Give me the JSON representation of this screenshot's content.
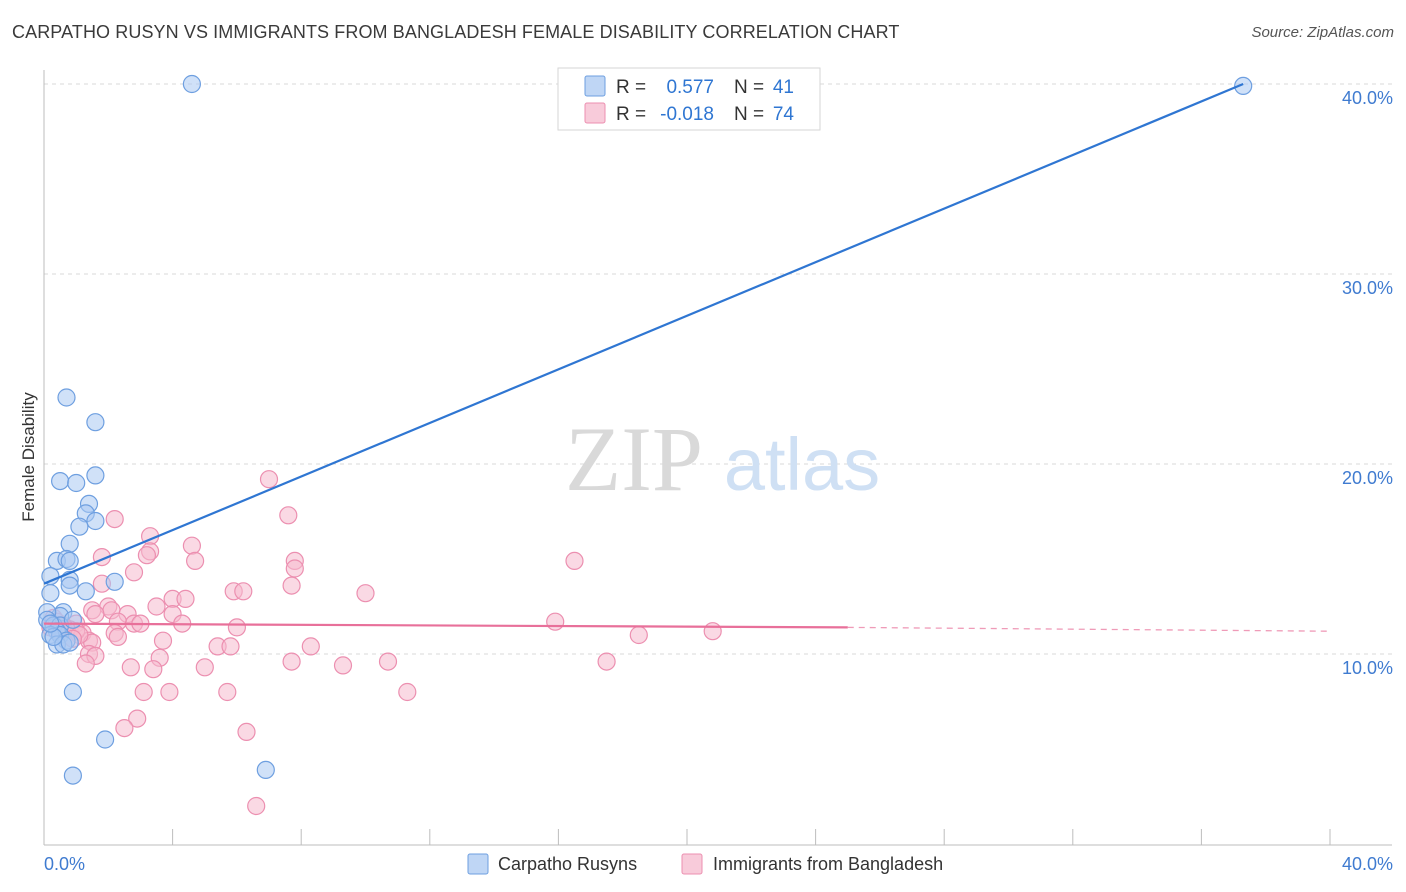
{
  "title": "CARPATHO RUSYN VS IMMIGRANTS FROM BANGLADESH FEMALE DISABILITY CORRELATION CHART",
  "source": "Source: ZipAtlas.com",
  "watermark": {
    "zip": "ZIP",
    "atlas": "atlas"
  },
  "legend_stats": [
    {
      "r_label": "R =",
      "r_value": "0.577",
      "n_label": "N =",
      "n_value": "41"
    },
    {
      "r_label": "R =",
      "r_value": "-0.018",
      "n_label": "N =",
      "n_value": "74"
    }
  ],
  "colors": {
    "blue_fill": "#a9c8f2",
    "blue_stroke": "#6e9fe0",
    "blue_line": "#2f76d2",
    "pink_fill": "#f6b9ce",
    "pink_stroke": "#ec8fb0",
    "pink_line": "#e8709a",
    "tick_text": "#3f7bd0",
    "grid": "#d9d9d9"
  },
  "chart_data": {
    "type": "scatter",
    "title": "CARPATHO RUSYN VS IMMIGRANTS FROM BANGLADESH FEMALE DISABILITY CORRELATION CHART",
    "xlabel": "",
    "ylabel": "Female Disability",
    "xlim": [
      0,
      40
    ],
    "ylim": [
      0,
      41.5
    ],
    "x_tick_labels": [
      "0.0%",
      "40.0%"
    ],
    "y_ticks": [
      10,
      20,
      30,
      40
    ],
    "y_tick_labels": [
      "10.0%",
      "20.0%",
      "30.0%",
      "40.0%"
    ],
    "grid": true,
    "legend_position": "bottom-center",
    "series": [
      {
        "name": "Carpatho Rusyns",
        "r": 0.577,
        "n": 41,
        "trend": {
          "x0": 0,
          "y0": 13.7,
          "x1": 37.3,
          "y1": 40.0,
          "dashed_to": null
        },
        "points": [
          [
            4.6,
            40.0
          ],
          [
            37.3,
            39.9
          ],
          [
            0.7,
            23.5
          ],
          [
            1.6,
            22.2
          ],
          [
            1.6,
            19.4
          ],
          [
            0.5,
            19.1
          ],
          [
            1.0,
            19.0
          ],
          [
            1.4,
            17.9
          ],
          [
            1.3,
            17.4
          ],
          [
            1.6,
            17.0
          ],
          [
            1.1,
            16.7
          ],
          [
            0.8,
            15.8
          ],
          [
            0.4,
            14.9
          ],
          [
            0.7,
            15.0
          ],
          [
            0.8,
            14.9
          ],
          [
            0.2,
            14.1
          ],
          [
            0.8,
            13.9
          ],
          [
            0.8,
            13.6
          ],
          [
            2.2,
            13.8
          ],
          [
            1.3,
            13.3
          ],
          [
            0.2,
            13.2
          ],
          [
            0.6,
            12.2
          ],
          [
            0.5,
            12.0
          ],
          [
            0.1,
            12.2
          ],
          [
            0.1,
            11.8
          ],
          [
            0.3,
            11.5
          ],
          [
            0.5,
            11.5
          ],
          [
            0.9,
            11.8
          ],
          [
            0.4,
            11.2
          ],
          [
            0.2,
            11.0
          ],
          [
            0.5,
            11.0
          ],
          [
            0.7,
            10.7
          ],
          [
            0.4,
            10.5
          ],
          [
            0.6,
            10.5
          ],
          [
            0.8,
            10.6
          ],
          [
            0.3,
            10.9
          ],
          [
            0.9,
            8.0
          ],
          [
            1.9,
            5.5
          ],
          [
            0.9,
            3.6
          ],
          [
            6.9,
            3.9
          ],
          [
            0.2,
            11.6
          ]
        ]
      },
      {
        "name": "Immigrants from Bangladesh",
        "r": -0.018,
        "n": 74,
        "trend": {
          "x0": 0,
          "y0": 11.6,
          "x1": 25.0,
          "y1": 11.4,
          "dashed_to": [
            40,
            11.2
          ]
        },
        "points": [
          [
            7.0,
            19.2
          ],
          [
            2.2,
            17.1
          ],
          [
            7.6,
            17.3
          ],
          [
            3.3,
            16.2
          ],
          [
            3.3,
            15.4
          ],
          [
            3.2,
            15.2
          ],
          [
            4.6,
            15.7
          ],
          [
            1.8,
            15.1
          ],
          [
            7.8,
            14.9
          ],
          [
            4.7,
            14.9
          ],
          [
            16.5,
            14.9
          ],
          [
            7.8,
            14.5
          ],
          [
            2.8,
            14.3
          ],
          [
            1.8,
            13.7
          ],
          [
            7.7,
            13.6
          ],
          [
            5.9,
            13.3
          ],
          [
            6.2,
            13.3
          ],
          [
            10.0,
            13.2
          ],
          [
            4.0,
            12.9
          ],
          [
            4.4,
            12.9
          ],
          [
            3.5,
            12.5
          ],
          [
            2.0,
            12.5
          ],
          [
            1.5,
            12.3
          ],
          [
            2.1,
            12.3
          ],
          [
            4.0,
            12.1
          ],
          [
            1.6,
            12.1
          ],
          [
            2.6,
            12.1
          ],
          [
            2.3,
            11.7
          ],
          [
            2.8,
            11.6
          ],
          [
            3.0,
            11.6
          ],
          [
            4.3,
            11.6
          ],
          [
            6.0,
            11.4
          ],
          [
            15.9,
            11.7
          ],
          [
            20.8,
            11.2
          ],
          [
            18.5,
            11.0
          ],
          [
            1.0,
            11.6
          ],
          [
            0.8,
            11.3
          ],
          [
            0.2,
            11.4
          ],
          [
            0.5,
            11.2
          ],
          [
            1.2,
            11.1
          ],
          [
            2.2,
            11.1
          ],
          [
            2.3,
            10.9
          ],
          [
            1.4,
            10.7
          ],
          [
            1.5,
            10.6
          ],
          [
            3.7,
            10.7
          ],
          [
            5.4,
            10.4
          ],
          [
            5.8,
            10.4
          ],
          [
            8.3,
            10.4
          ],
          [
            1.4,
            10.0
          ],
          [
            1.6,
            9.9
          ],
          [
            3.6,
            9.8
          ],
          [
            1.3,
            9.5
          ],
          [
            2.7,
            9.3
          ],
          [
            3.4,
            9.2
          ],
          [
            5.0,
            9.3
          ],
          [
            7.7,
            9.6
          ],
          [
            9.3,
            9.4
          ],
          [
            10.7,
            9.6
          ],
          [
            17.5,
            9.6
          ],
          [
            3.1,
            8.0
          ],
          [
            3.9,
            8.0
          ],
          [
            5.7,
            8.0
          ],
          [
            11.3,
            8.0
          ],
          [
            2.9,
            6.6
          ],
          [
            2.5,
            6.1
          ],
          [
            6.3,
            5.9
          ],
          [
            6.6,
            2.0
          ],
          [
            0.3,
            11.9
          ],
          [
            0.6,
            11.5
          ],
          [
            1.0,
            11.2
          ],
          [
            0.4,
            11.7
          ],
          [
            0.7,
            11.3
          ],
          [
            1.1,
            11.0
          ],
          [
            0.9,
            10.8
          ]
        ]
      }
    ]
  }
}
